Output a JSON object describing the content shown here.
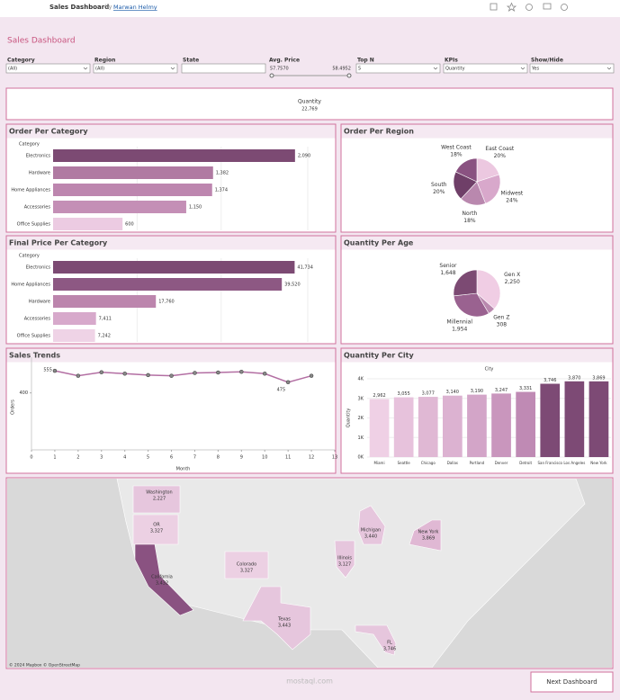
{
  "header": {
    "title": "Sales Dashboard",
    "by": "by",
    "author": "Marwan Helmy"
  },
  "dashboard_title": "Sales Dashboard",
  "filters": [
    {
      "label": "Category",
      "value": "(All)"
    },
    {
      "label": "Region",
      "value": "(All)"
    },
    {
      "label": "State"
    },
    {
      "label": "Avg. Price",
      "min": "57.7570",
      "max": "58.4952"
    },
    {
      "label": "Top N",
      "value": "5"
    },
    {
      "label": "KPIs",
      "value": "Quantity"
    },
    {
      "label": "Show/Hide",
      "value": "Yes"
    }
  ],
  "kpi": {
    "label": "Quantity",
    "value": "22,769"
  },
  "chart_data": [
    {
      "type": "bar",
      "orientation": "horizontal",
      "title": "Order Per Category",
      "axis_label": "Category",
      "categories": [
        "Electronics",
        "Hardware",
        "Home Appliances",
        "Accessories",
        "Office Supplies"
      ],
      "values": [
        2090,
        1382,
        1374,
        1150,
        600
      ],
      "value_labels": [
        "2,090",
        "1,382",
        "1,374",
        "1,150",
        "600"
      ],
      "colors": [
        "#7c4a73",
        "#b07aa2",
        "#bd86af",
        "#c48fb6",
        "#eccbe2"
      ],
      "xlim": [
        0,
        2200
      ]
    },
    {
      "type": "pie",
      "title": "Order Per Region",
      "categories": [
        "East Coast",
        "Midwest",
        "North",
        "South",
        "West Coast"
      ],
      "values": [
        20,
        24,
        18,
        20,
        18
      ],
      "value_labels": [
        "20%",
        "24%",
        "18%",
        "20%",
        "18%"
      ],
      "colors": [
        "#ecc8e0",
        "#d8a8cb",
        "#b988ae",
        "#6f3f68",
        "#8a5281"
      ]
    },
    {
      "type": "bar",
      "orientation": "horizontal",
      "title": "Final Price Per Category",
      "axis_label": "Category",
      "categories": [
        "Electronics",
        "Home Appliances",
        "Hardware",
        "Accessories",
        "Office Supplies"
      ],
      "values": [
        41734,
        39520,
        17760,
        7411,
        7242
      ],
      "value_labels": [
        "41,734",
        "39,520",
        "17,760",
        "7,411",
        "7,242"
      ],
      "colors": [
        "#7c4a73",
        "#8d5883",
        "#bc85ad",
        "#d7a9cb",
        "#efd3e6"
      ],
      "xlim": [
        0,
        44000
      ]
    },
    {
      "type": "pie",
      "title": "Quantity Per Age",
      "categories": [
        "Gen X",
        "Gen Z",
        "Millennial",
        "Senior"
      ],
      "values": [
        2250,
        308,
        1954,
        1648
      ],
      "value_labels": [
        "2,250",
        "308",
        "1,954",
        "1,648"
      ],
      "colors": [
        "#f0cde4",
        "#b988ae",
        "#9a6290",
        "#7c4a73"
      ]
    },
    {
      "type": "line",
      "title": "Sales Trends",
      "x_label": "Month",
      "y_label": "Orders",
      "x": [
        1,
        2,
        3,
        4,
        5,
        6,
        7,
        8,
        9,
        10,
        11,
        12
      ],
      "values": [
        555,
        520,
        545,
        535,
        525,
        520,
        540,
        543,
        548,
        535,
        475,
        520
      ],
      "value_labels": [
        555,
        null,
        null,
        null,
        null,
        null,
        null,
        null,
        null,
        null,
        475,
        null
      ],
      "color": "#b36fa3",
      "xlim": [
        0,
        13
      ],
      "xticks": [
        0,
        1,
        2,
        3,
        4,
        5,
        6,
        7,
        8,
        9,
        10,
        11,
        12,
        13
      ],
      "ylim": [
        0,
        600
      ],
      "yticks": [
        400
      ]
    },
    {
      "type": "bar",
      "orientation": "vertical",
      "title": "Quantity Per City",
      "axis_label": "City",
      "y_label": "Quantity",
      "categories": [
        "Miami",
        "Seattle",
        "Chicago",
        "Dallas",
        "Portland",
        "Denver",
        "Detroit",
        "San Francisco",
        "Los Angeles",
        "New York"
      ],
      "values": [
        2962,
        3055,
        3077,
        3140,
        3190,
        3247,
        3331,
        3746,
        3870,
        3869
      ],
      "value_labels": [
        "2,962",
        "3,055",
        "3,077",
        "3,140",
        "3,190",
        "3,247",
        "3,331",
        "3,746",
        "3,870",
        "3,869"
      ],
      "colors": [
        "#efd0e5",
        "#e7c2dc",
        "#e0b8d4",
        "#dcb2d1",
        "#d3a5c8",
        "#c996bd",
        "#bf8ab4",
        "#7d4a75",
        "#7d4a75",
        "#7d4a75"
      ],
      "ylim": [
        0,
        4000
      ],
      "yticks": [
        {
          "value": 0,
          "label": "0K"
        },
        {
          "value": 1000,
          "label": "1K"
        },
        {
          "value": 2000,
          "label": "2K"
        },
        {
          "value": 3000,
          "label": "3K"
        },
        {
          "value": 4000,
          "label": "4K"
        }
      ]
    }
  ],
  "map": {
    "states": [
      {
        "name": "Washington",
        "value": "2,227"
      },
      {
        "name": "OR",
        "value": "3,327"
      },
      {
        "name": "California",
        "value": "3,432"
      },
      {
        "name": "Colorado",
        "value": "3,327"
      },
      {
        "name": "Texas",
        "value": "3,443"
      },
      {
        "name": "Illinois",
        "value": "3,127"
      },
      {
        "name": "Michigan",
        "value": "3,440"
      },
      {
        "name": "New York",
        "value": "3,869"
      },
      {
        "name": "FL",
        "value": "3,746"
      }
    ],
    "credit": "© 2024 Mapbox © OpenStreetMap"
  },
  "button": "Next Dashboard",
  "watermark": "mostaql.com"
}
